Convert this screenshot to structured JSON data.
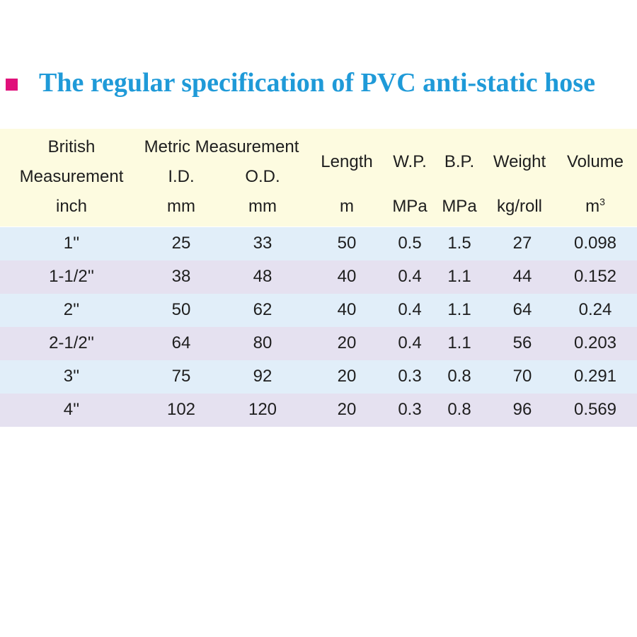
{
  "title": "The regular specification of PVC anti-static hose",
  "colors": {
    "bullet": "#e0107a",
    "title": "#1f9ad8",
    "header_bg": "#fdfbe0",
    "row_blue": "#e1eef9",
    "row_purple": "#e5e1f0"
  },
  "header": {
    "british_l1": "British",
    "british_l2": "Measurement",
    "british_unit": "inch",
    "metric": "Metric Measurement",
    "id": "I.D.",
    "id_unit": "mm",
    "od": "O.D.",
    "od_unit": "mm",
    "length": "Length",
    "length_unit": "m",
    "wp": "W.P.",
    "wp_unit": "MPa",
    "bp": "B.P.",
    "bp_unit": "MPa",
    "weight": "Weight",
    "weight_unit": "kg/roll",
    "volume": "Volume",
    "volume_unit_base": "m",
    "volume_unit_exp": "3"
  },
  "rows": [
    [
      "1''",
      "25",
      "33",
      "50",
      "0.5",
      "1.5",
      "27",
      "0.098"
    ],
    [
      "1-1/2''",
      "38",
      "48",
      "40",
      "0.4",
      "1.1",
      "44",
      "0.152"
    ],
    [
      "2''",
      "50",
      "62",
      "40",
      "0.4",
      "1.1",
      "64",
      "0.24"
    ],
    [
      "2-1/2''",
      "64",
      "80",
      "20",
      "0.4",
      "1.1",
      "56",
      "0.203"
    ],
    [
      "3''",
      "75",
      "92",
      "20",
      "0.3",
      "0.8",
      "70",
      "0.291"
    ],
    [
      "4''",
      "102",
      "120",
      "20",
      "0.3",
      "0.8",
      "96",
      "0.569"
    ]
  ]
}
